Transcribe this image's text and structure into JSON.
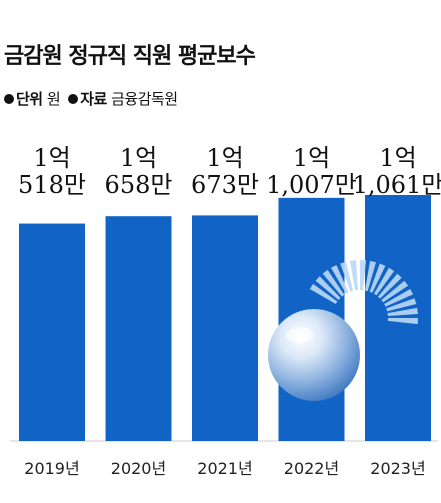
{
  "header": {
    "title": "금감원 정규직 직원 평균보수",
    "unit_key": "단위",
    "unit_value": "원",
    "source_key": "자료",
    "source_value": "금융감독원"
  },
  "chart_data": {
    "type": "bar",
    "title": "금감원 정규직 직원 평균보수",
    "unit": "원",
    "categories": [
      "2019년",
      "2020년",
      "2021년",
      "2022년",
      "2023년"
    ],
    "values": [
      105180000,
      106580000,
      106730000,
      110070000,
      110610000
    ],
    "value_labels": [
      [
        "1억",
        "518만"
      ],
      [
        "1억",
        "658만"
      ],
      [
        "1억",
        "673만"
      ],
      [
        "1억",
        "1,007만"
      ],
      [
        "1억",
        "1,061만"
      ]
    ],
    "colors": {
      "bar": "#1164c6",
      "logo_light": "#bcd8f4"
    },
    "grid": false,
    "legend": "none"
  }
}
